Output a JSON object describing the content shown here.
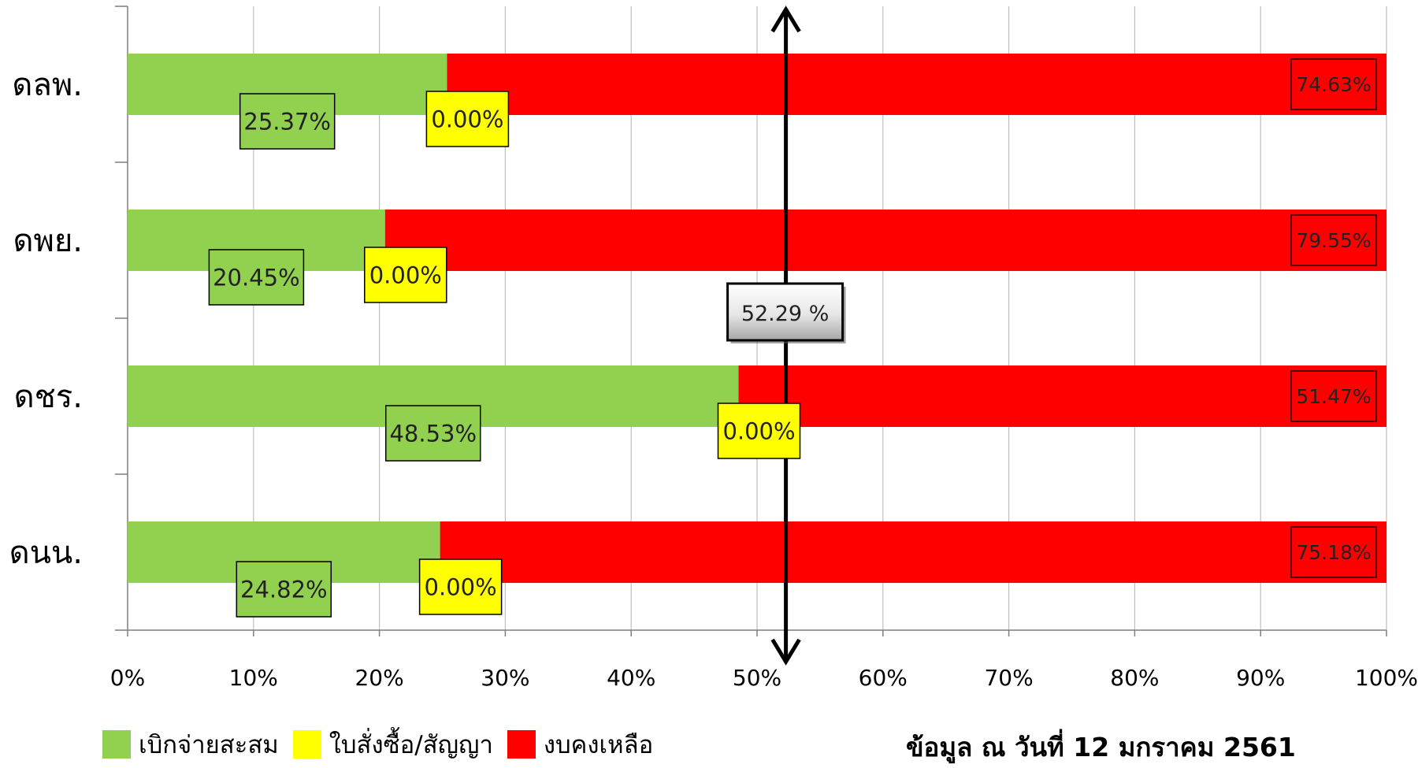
{
  "chart_data": {
    "type": "bar",
    "orientation": "horizontal",
    "stacked": true,
    "categories": [
      "ดลพ.",
      "ดพย.",
      "ดชร.",
      "ดนน."
    ],
    "series": [
      {
        "name": "เบิกจ่ายสะสม",
        "color": "#92D050",
        "values": [
          25.37,
          20.45,
          48.53,
          24.82
        ],
        "labels": [
          "25.37%",
          "20.45%",
          "48.53%",
          "24.82%"
        ]
      },
      {
        "name": "ใบสั่งซื้อ/สัญญา",
        "color": "#FFFF00",
        "values": [
          0.0,
          0.0,
          0.0,
          0.0
        ],
        "labels": [
          "0.00%",
          "0.00%",
          "0.00%",
          "0.00%"
        ]
      },
      {
        "name": "งบคงเหลือ",
        "color": "#FF0000",
        "values": [
          74.63,
          79.55,
          51.47,
          75.18
        ],
        "labels": [
          "74.63%",
          "79.55%",
          "51.47%",
          "75.18%"
        ]
      }
    ],
    "x_ticks": [
      "0%",
      "10%",
      "20%",
      "30%",
      "40%",
      "50%",
      "60%",
      "70%",
      "80%",
      "90%",
      "100%"
    ],
    "xlim": [
      0,
      100
    ],
    "grid": true,
    "legend_position": "bottom-left",
    "reference_line": {
      "value": 52.29,
      "label": "52.29 %"
    }
  },
  "note": "ข้อมูล ณ วันที่ 12 มกราคม 2561"
}
